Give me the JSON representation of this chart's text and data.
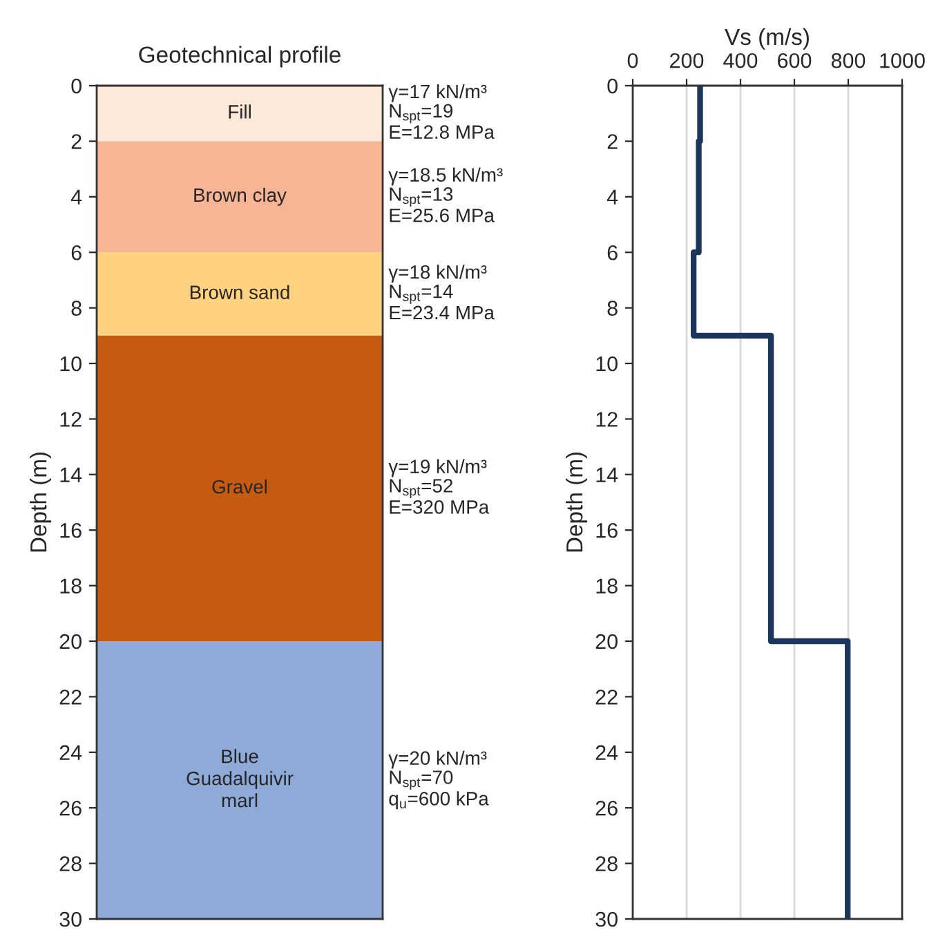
{
  "chart_data": [
    {
      "type": "bar",
      "stacked": true,
      "title": "Geotechnical profile",
      "ylabel": "Depth (m)",
      "categories": [
        null
      ],
      "ylim": [
        30,
        0
      ],
      "yticks": [
        0,
        2,
        4,
        6,
        8,
        10,
        12,
        14,
        16,
        18,
        20,
        22,
        24,
        26,
        28,
        30
      ],
      "tick_labels": "y",
      "grid": false,
      "legend": false,
      "series": [
        {
          "name": "Fill",
          "color": "#fde9d9",
          "values": [
            2
          ]
        },
        {
          "name": "Brown clay",
          "color": "#f8b595",
          "values": [
            4
          ]
        },
        {
          "name": "Brown sand",
          "color": "#fed27f",
          "values": [
            3
          ]
        },
        {
          "name": "Gravel",
          "color": "#c55a11",
          "values": [
            11
          ]
        },
        {
          "name": "Blue\nGuadalquivir\nmarl",
          "color": "#8eaad8",
          "values": [
            10
          ]
        }
      ],
      "annotations": [
        "γ=17 kN/m³\nN$_{spt}$=19\nE=12.8 MPa",
        "γ=18.5 kN/m³\nN$_{spt}$=13\nE=25.6 MPa",
        "γ=18 kN/m³\nN$_{spt}$=14\nE=23.4 MPa",
        "γ=19 kN/m³\nN$_{spt}$=52\nE=320 MPa",
        "γ=20 kN/m³\nN$_{spt}$=70\nq$_{u}$=600 kPa"
      ]
    },
    {
      "type": "line",
      "xlabel": "Vs (m/s)",
      "ylabel": "Depth (m)",
      "xlim": [
        0,
        1000
      ],
      "xticks": [
        0,
        200,
        400,
        600,
        800,
        1000
      ],
      "ylim": [
        30,
        0
      ],
      "yticks": [
        0,
        2,
        4,
        6,
        8,
        10,
        12,
        14,
        16,
        18,
        20,
        22,
        24,
        26,
        28,
        30
      ],
      "grid": "x",
      "legend": false,
      "marker": "none",
      "line_style": "solid",
      "series": [
        {
          "color": "#1b365d",
          "x": [
            250,
            250,
            245,
            245,
            226,
            226,
            513,
            513,
            798,
            798
          ],
          "values": [
            0,
            2,
            2,
            6,
            6,
            9,
            9,
            20,
            20,
            30
          ]
        }
      ]
    }
  ]
}
